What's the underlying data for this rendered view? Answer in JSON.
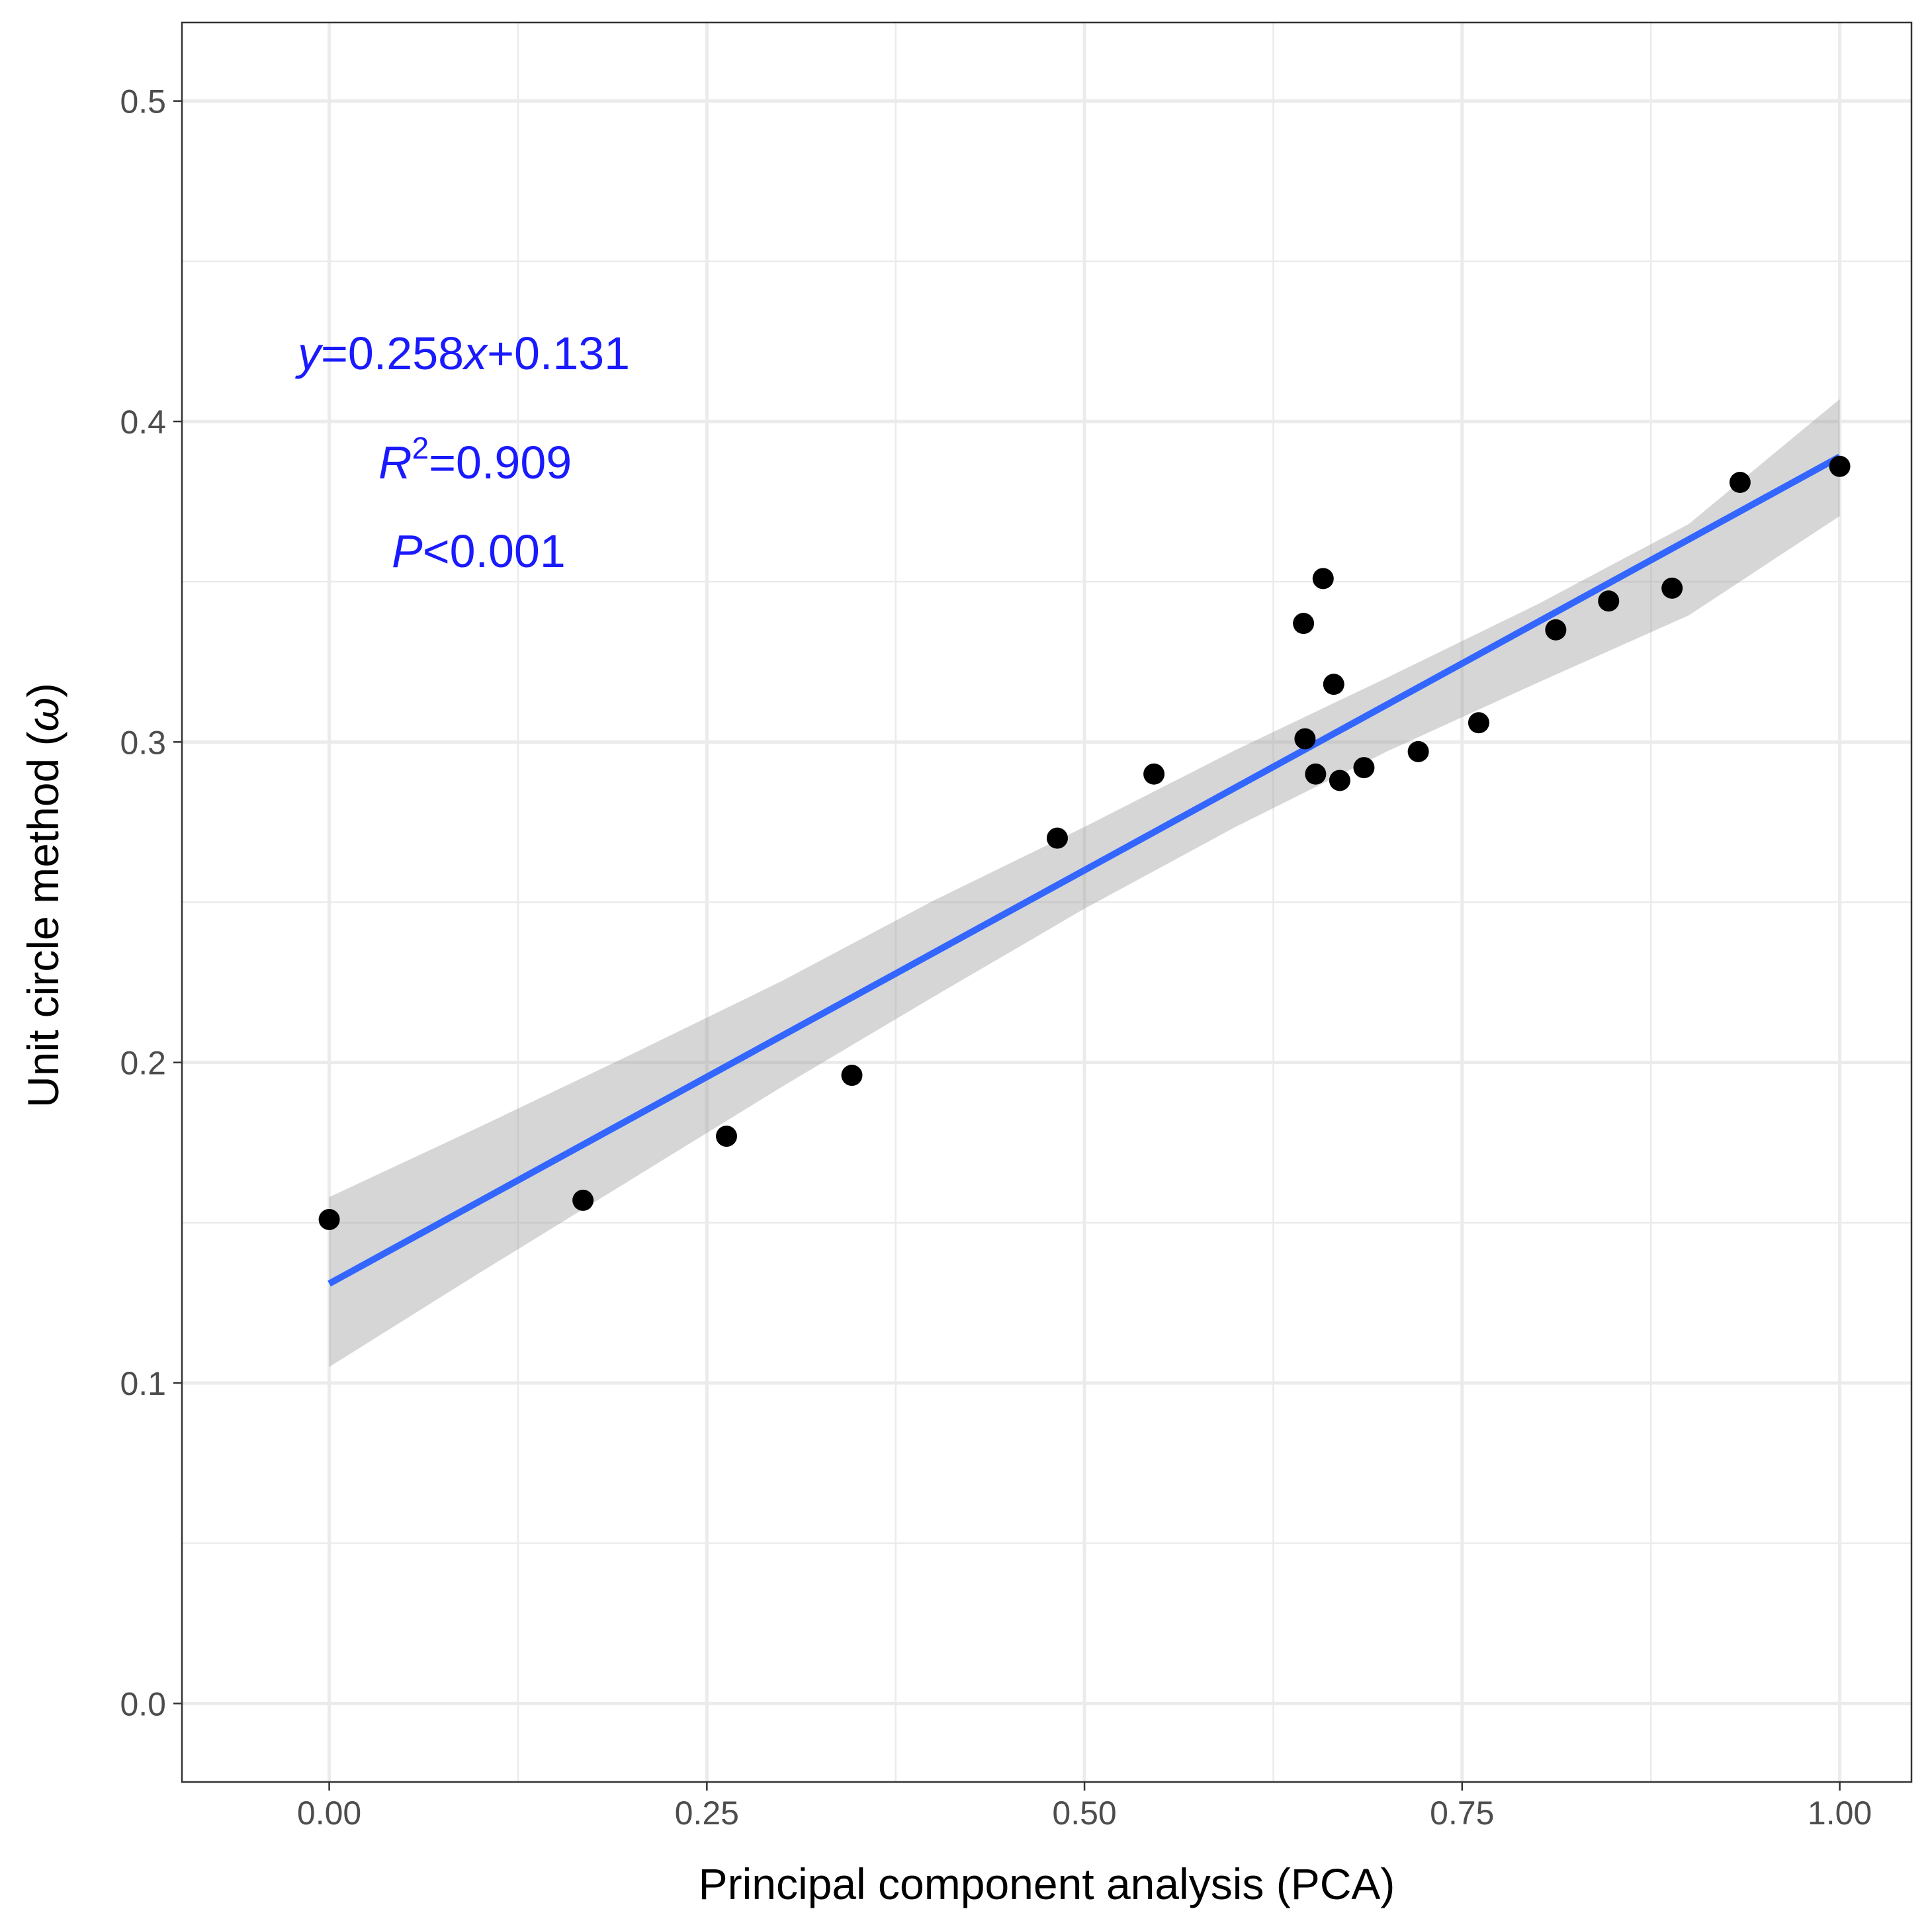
{
  "chart_data": {
    "type": "scatter",
    "title": "",
    "xlabel": "Principal component analysis (PCA)",
    "ylabel_prefix": "Unit circle method (",
    "ylabel_symbol": "ω",
    "ylabel_suffix": ")",
    "xlim": [
      -0.0975,
      1.0475
    ],
    "ylim": [
      -0.0245,
      0.5245
    ],
    "x_ticks": [
      0.0,
      0.25,
      0.5,
      0.75,
      1.0
    ],
    "x_tick_labels": [
      "0.00",
      "0.25",
      "0.50",
      "0.75",
      "1.00"
    ],
    "x_minor_gridlines": [
      0.125,
      0.375,
      0.625,
      0.875
    ],
    "y_ticks": [
      0.0,
      0.1,
      0.2,
      0.3,
      0.4,
      0.5
    ],
    "y_tick_labels": [
      "0.0",
      "0.1",
      "0.2",
      "0.3",
      "0.4",
      "0.5"
    ],
    "y_minor_gridlines": [
      0.05,
      0.15,
      0.25,
      0.35,
      0.45
    ],
    "grid": true,
    "points": [
      {
        "x": 0.0,
        "y": 0.151
      },
      {
        "x": 0.168,
        "y": 0.157
      },
      {
        "x": 0.263,
        "y": 0.177
      },
      {
        "x": 0.346,
        "y": 0.196
      },
      {
        "x": 0.482,
        "y": 0.27
      },
      {
        "x": 0.546,
        "y": 0.29
      },
      {
        "x": 0.645,
        "y": 0.337
      },
      {
        "x": 0.658,
        "y": 0.351
      },
      {
        "x": 0.646,
        "y": 0.301
      },
      {
        "x": 0.653,
        "y": 0.29
      },
      {
        "x": 0.665,
        "y": 0.318
      },
      {
        "x": 0.669,
        "y": 0.288
      },
      {
        "x": 0.685,
        "y": 0.292
      },
      {
        "x": 0.721,
        "y": 0.297
      },
      {
        "x": 0.761,
        "y": 0.306
      },
      {
        "x": 0.812,
        "y": 0.335
      },
      {
        "x": 0.847,
        "y": 0.344
      },
      {
        "x": 0.889,
        "y": 0.348
      },
      {
        "x": 0.934,
        "y": 0.381
      },
      {
        "x": 1.0,
        "y": 0.386
      }
    ],
    "fit_line": {
      "slope": 0.258,
      "intercept": 0.131,
      "x_range": [
        0.0,
        1.0
      ],
      "color": "#3366ff"
    },
    "confidence_band": {
      "x": [
        0.0,
        0.1,
        0.2,
        0.3,
        0.4,
        0.5,
        0.6,
        0.7,
        0.8,
        0.9,
        1.0
      ],
      "lower": [
        0.105,
        0.1345,
        0.1635,
        0.1925,
        0.2205,
        0.248,
        0.2735,
        0.297,
        0.3185,
        0.3395,
        0.3705
      ],
      "upper": [
        0.158,
        0.18,
        0.2025,
        0.2255,
        0.2505,
        0.2735,
        0.2975,
        0.32,
        0.343,
        0.368,
        0.407
      ],
      "color": "#999999"
    },
    "annotations": {
      "equation": {
        "var_y": "y",
        "mid": "=0.258",
        "var_x": "x",
        "tail": "+0.131"
      },
      "r_squared": {
        "var": "R",
        "sup": "2",
        "tail": "=0.909"
      },
      "p_value": {
        "var": "P",
        "tail": "<0.001"
      },
      "color": "#1a1aff"
    },
    "colors": {
      "point": "#000000",
      "grid_major": "#ebebeb",
      "grid_minor": "#ebebeb",
      "panel_border": "#333333",
      "tick": "#333333"
    }
  }
}
